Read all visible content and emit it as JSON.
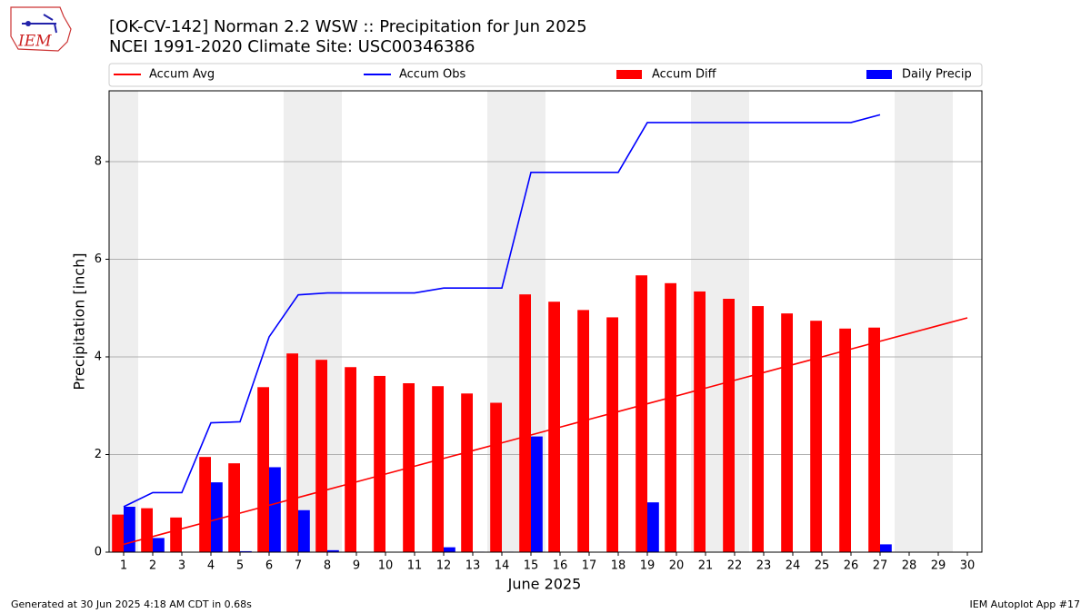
{
  "logo_text": "IEM",
  "footer_left": "Generated at 30 Jun 2025 4:18 AM CDT in 0.68s",
  "footer_right": "IEM Autoplot App #17",
  "chart_data": {
    "type": "bar",
    "title": "[OK-CV-142] Norman 2.2 WSW :: Precipitation for Jun 2025",
    "subtitle": "NCEI 1991-2020 Climate Site: USC00346386",
    "xlabel": "June 2025",
    "ylabel": "Precipitation [inch]",
    "x": [
      1,
      2,
      3,
      4,
      5,
      6,
      7,
      8,
      9,
      10,
      11,
      12,
      13,
      14,
      15,
      16,
      17,
      18,
      19,
      20,
      21,
      22,
      23,
      24,
      25,
      26,
      27,
      28,
      29,
      30
    ],
    "xlim": [
      0.5,
      30.5
    ],
    "xticks": [
      1,
      2,
      3,
      4,
      5,
      6,
      7,
      8,
      9,
      10,
      11,
      12,
      13,
      14,
      15,
      16,
      17,
      18,
      19,
      20,
      21,
      22,
      23,
      24,
      25,
      26,
      27,
      28,
      29,
      30
    ],
    "ylim": [
      0,
      9.45
    ],
    "yticks": [
      0,
      2,
      4,
      6,
      8
    ],
    "grid": true,
    "shaded_days": [
      1,
      7,
      8,
      14,
      15,
      21,
      22,
      28,
      29
    ],
    "shade_color": "#eeeeee",
    "series": [
      {
        "name": "Accum Avg",
        "kind": "line",
        "color": "#ff0000",
        "values": [
          0.16,
          0.32,
          0.48,
          0.64,
          0.8,
          0.96,
          1.12,
          1.28,
          1.44,
          1.6,
          1.76,
          1.92,
          2.08,
          2.24,
          2.4,
          2.56,
          2.72,
          2.88,
          3.04,
          3.2,
          3.36,
          3.52,
          3.68,
          3.84,
          4.0,
          4.16,
          4.32,
          4.48,
          4.64,
          4.8
        ]
      },
      {
        "name": "Accum Obs",
        "kind": "line",
        "color": "#0000ff",
        "values": [
          0.93,
          1.22,
          1.22,
          2.65,
          2.67,
          4.41,
          5.27,
          5.31,
          5.31,
          5.31,
          5.31,
          5.41,
          5.41,
          5.41,
          7.78,
          7.78,
          7.78,
          7.78,
          8.8,
          8.8,
          8.8,
          8.8,
          8.8,
          8.8,
          8.8,
          8.8,
          8.96,
          null,
          null,
          null
        ]
      },
      {
        "name": "Accum Diff",
        "kind": "bar",
        "color": "#ff0000",
        "values": [
          0.77,
          0.9,
          0.71,
          1.95,
          1.82,
          3.38,
          4.07,
          3.94,
          3.79,
          3.61,
          3.46,
          3.4,
          3.25,
          3.06,
          5.28,
          5.13,
          4.96,
          4.81,
          5.67,
          5.51,
          5.34,
          5.19,
          5.04,
          4.89,
          4.74,
          4.58,
          4.6,
          null,
          null,
          null
        ]
      },
      {
        "name": "Daily Precip",
        "kind": "bar",
        "color": "#0000ff",
        "values": [
          0.93,
          0.29,
          0,
          1.43,
          0.02,
          1.74,
          0.86,
          0.04,
          0,
          0,
          0,
          0.1,
          0.01,
          0.01,
          2.37,
          0,
          0,
          0.01,
          1.02,
          0,
          0,
          0,
          0,
          0,
          0,
          0,
          0.16,
          null,
          null,
          null
        ]
      }
    ]
  }
}
